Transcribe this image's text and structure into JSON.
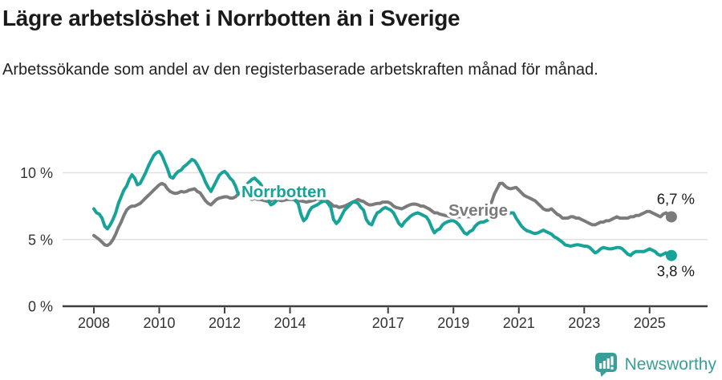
{
  "header": {
    "title": "Lägre arbetslöshet i Norrbotten än i Sverige",
    "subtitle": "Arbetssökande som andel av den registerbaserade arbetskraften månad för månad."
  },
  "colors": {
    "norrbotten": "#17a398",
    "sverige": "#7b7b7b",
    "axis": "#3f3f3f",
    "grid": "#e0e0e0",
    "tick_text": "#333333",
    "value_text": "#1a1a1a",
    "brand_teal": "#3a9e98"
  },
  "footer": {
    "brand": "Newsworthy"
  },
  "chart_data": {
    "type": "line",
    "title": "Lägre arbetslöshet i Norrbotten än i Sverige",
    "subtitle": "Arbetssökande som andel av den registerbaserade arbetskraften månad för månad.",
    "unit": "%",
    "frequency": "monthly",
    "start_month": "2008-01",
    "end_month": "2025-09",
    "xlabel": "",
    "ylabel": "",
    "ylim": [
      0,
      12.2
    ],
    "grid": "horizontal",
    "y_ticks": [
      {
        "value": 0,
        "label": "0 %"
      },
      {
        "value": 5,
        "label": "5 %"
      },
      {
        "value": 10,
        "label": "10 %"
      }
    ],
    "x_ticks": [
      {
        "year": 2008,
        "label": "2008"
      },
      {
        "year": 2010,
        "label": "2010"
      },
      {
        "year": 2012,
        "label": "2012"
      },
      {
        "year": 2014,
        "label": "2014"
      },
      {
        "year": 2017,
        "label": "2017"
      },
      {
        "year": 2019,
        "label": "2019"
      },
      {
        "year": 2021,
        "label": "2021"
      },
      {
        "year": 2023,
        "label": "2023"
      },
      {
        "year": 2025,
        "label": "2025"
      }
    ],
    "series": [
      {
        "name": "Sverige",
        "color_key": "sverige",
        "end_label": "6,7 %",
        "end_value": 6.7,
        "values": [
          5.3,
          5.15,
          5.0,
          4.8,
          4.6,
          4.55,
          4.7,
          5.0,
          5.4,
          5.9,
          6.3,
          6.8,
          7.2,
          7.4,
          7.5,
          7.5,
          7.6,
          7.7,
          7.9,
          8.1,
          8.3,
          8.5,
          8.7,
          8.9,
          9.1,
          9.2,
          9.1,
          8.8,
          8.6,
          8.5,
          8.45,
          8.5,
          8.6,
          8.55,
          8.6,
          8.7,
          8.75,
          8.8,
          8.6,
          8.5,
          8.2,
          7.9,
          7.7,
          7.6,
          7.8,
          8.0,
          8.1,
          8.15,
          8.2,
          8.2,
          8.1,
          8.1,
          8.2,
          8.4,
          8.5,
          8.4,
          8.2,
          8.1,
          8.0,
          8.1,
          8.0,
          8.0,
          7.95,
          7.9,
          7.85,
          7.9,
          8.0,
          8.0,
          7.95,
          7.9,
          7.95,
          8.0,
          8.0,
          8.0,
          7.95,
          7.9,
          7.9,
          7.85,
          7.8,
          7.85,
          7.9,
          7.95,
          8.05,
          8.0,
          8.0,
          7.9,
          7.85,
          7.7,
          7.5,
          7.5,
          7.4,
          7.45,
          7.5,
          7.6,
          7.7,
          7.8,
          7.9,
          8.0,
          7.9,
          7.85,
          7.7,
          7.6,
          7.6,
          7.65,
          7.7,
          7.7,
          7.8,
          7.8,
          7.8,
          7.7,
          7.5,
          7.4,
          7.35,
          7.3,
          7.4,
          7.5,
          7.6,
          7.65,
          7.65,
          7.6,
          7.5,
          7.5,
          7.4,
          7.3,
          7.15,
          7.0,
          7.0,
          6.9,
          6.85,
          6.8,
          6.75,
          6.7,
          6.7,
          6.7,
          6.7,
          6.7,
          6.7,
          6.7,
          6.7,
          6.75,
          6.75,
          6.8,
          6.85,
          6.9,
          7.1,
          7.3,
          7.8,
          8.4,
          8.8,
          9.2,
          9.2,
          9.0,
          8.85,
          8.8,
          8.85,
          8.9,
          8.7,
          8.5,
          8.3,
          8.2,
          8.1,
          8.0,
          7.9,
          7.7,
          7.5,
          7.3,
          7.2,
          7.2,
          7.3,
          7.1,
          6.9,
          6.8,
          6.6,
          6.6,
          6.6,
          6.7,
          6.7,
          6.6,
          6.6,
          6.5,
          6.4,
          6.3,
          6.2,
          6.1,
          6.1,
          6.2,
          6.3,
          6.3,
          6.4,
          6.4,
          6.5,
          6.6,
          6.7,
          6.6,
          6.6,
          6.6,
          6.6,
          6.7,
          6.7,
          6.8,
          6.8,
          6.9,
          7.0,
          7.1,
          7.1,
          7.0,
          6.9,
          6.8,
          6.7,
          6.9,
          7.0,
          6.9,
          6.7
        ]
      },
      {
        "name": "Norrbotten",
        "color_key": "norrbotten",
        "end_label": "3,8 %",
        "end_value": 3.8,
        "values": [
          7.3,
          7.0,
          6.9,
          6.6,
          6.0,
          5.8,
          6.1,
          6.5,
          7.0,
          7.7,
          8.2,
          8.7,
          9.0,
          9.5,
          9.85,
          9.6,
          9.1,
          9.2,
          9.6,
          10.0,
          10.5,
          10.9,
          11.3,
          11.5,
          11.6,
          11.3,
          10.8,
          10.3,
          9.7,
          9.6,
          9.9,
          10.1,
          10.2,
          10.45,
          10.6,
          10.8,
          11.0,
          10.9,
          10.6,
          10.2,
          9.8,
          9.3,
          8.9,
          8.6,
          9.0,
          9.4,
          9.8,
          10.0,
          10.1,
          9.9,
          9.6,
          9.4,
          9.0,
          8.4,
          8.5,
          8.8,
          9.1,
          9.3,
          9.5,
          9.6,
          9.4,
          9.2,
          8.9,
          8.5,
          7.9,
          7.6,
          7.7,
          7.9,
          8.1,
          8.2,
          8.3,
          8.3,
          8.2,
          8.1,
          7.9,
          7.7,
          6.9,
          6.4,
          6.6,
          7.1,
          7.4,
          7.5,
          7.6,
          7.75,
          7.85,
          7.9,
          7.7,
          7.4,
          6.5,
          6.2,
          6.4,
          6.8,
          7.2,
          7.4,
          7.6,
          7.8,
          7.8,
          7.7,
          7.4,
          7.2,
          6.5,
          6.2,
          6.1,
          6.6,
          7.0,
          7.1,
          7.3,
          7.4,
          7.3,
          7.2,
          7.0,
          6.6,
          6.2,
          6.0,
          6.3,
          6.5,
          6.7,
          6.85,
          6.95,
          7.0,
          6.9,
          6.8,
          6.7,
          6.4,
          5.9,
          5.5,
          5.7,
          5.8,
          6.1,
          6.25,
          6.35,
          6.4,
          6.4,
          6.3,
          6.1,
          5.8,
          5.5,
          5.4,
          5.6,
          5.7,
          6.0,
          6.2,
          6.3,
          6.3,
          6.4,
          6.5,
          6.9,
          7.1,
          7.2,
          7.1,
          7.0,
          6.9,
          6.9,
          7.0,
          7.0,
          6.6,
          6.3,
          6.0,
          5.8,
          5.65,
          5.6,
          5.5,
          5.45,
          5.5,
          5.6,
          5.7,
          5.6,
          5.5,
          5.4,
          5.2,
          5.1,
          4.95,
          4.8,
          4.6,
          4.55,
          4.5,
          4.55,
          4.6,
          4.6,
          4.55,
          4.5,
          4.5,
          4.4,
          4.2,
          4.0,
          4.1,
          4.3,
          4.4,
          4.35,
          4.3,
          4.3,
          4.35,
          4.4,
          4.4,
          4.3,
          4.1,
          3.9,
          3.8,
          4.0,
          4.1,
          4.1,
          4.1,
          4.1,
          4.2,
          4.3,
          4.2,
          4.1,
          3.9,
          3.8,
          3.9,
          4.0,
          3.9,
          3.8
        ]
      }
    ],
    "series_labels": [
      {
        "text": "Sverige",
        "color_key": "sverige"
      },
      {
        "text": "Norrbotten",
        "color_key": "norrbotten"
      }
    ]
  }
}
